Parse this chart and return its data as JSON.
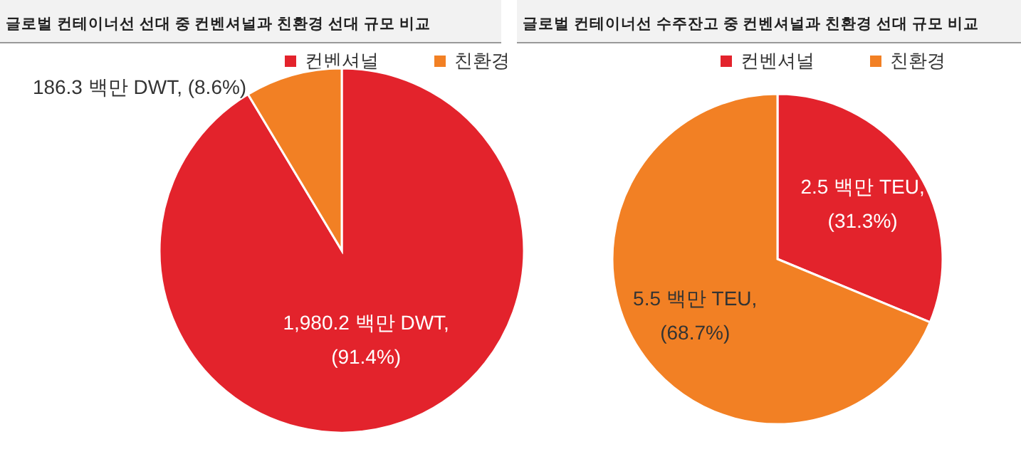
{
  "chart_data": [
    {
      "type": "pie",
      "title": "글로벌 컨테이너선 선대 중 컨벤셔널과 친환경 선대 규모 비교",
      "categories": [
        "컨벤셔널",
        "친환경"
      ],
      "values": [
        1980.2,
        186.3
      ],
      "colors": [
        "#e3232c",
        "#f28024"
      ],
      "value_labels": [
        "1,980.2 백만 DWT,\n(91.4%)",
        "186.3 백만 DWT, (8.6%)"
      ],
      "legend": "top"
    },
    {
      "type": "pie",
      "title": "글로벌 컨테이너선 수주잔고 중 컨벤셔널과 친환경 선대 규모 비교",
      "categories": [
        "컨벤셔널",
        "친환경"
      ],
      "values": [
        2.5,
        5.5
      ],
      "colors": [
        "#e3232c",
        "#f28024"
      ],
      "value_labels": [
        "2.5 백만 TEU,\n(31.3%)",
        "5.5 백만 TEU,\n(68.7%)"
      ],
      "legend": "top"
    }
  ]
}
